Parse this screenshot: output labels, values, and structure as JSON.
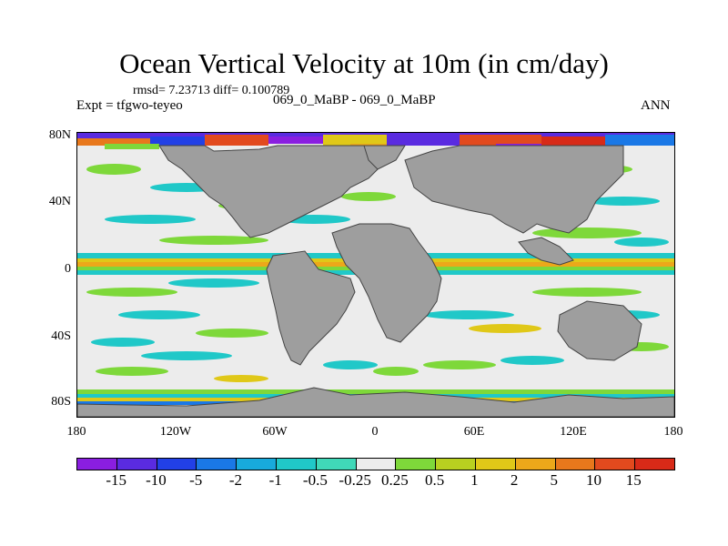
{
  "title": "Ocean Vertical Velocity at 10m (in cm/day)",
  "stats": "rmsd= 7.23713  diff= 0.100789",
  "expt": "Expt = tfgwo-teyeo",
  "cases": "069_0_MaBP - 069_0_MaBP",
  "season": "ANN",
  "lat_labels": [
    "80N",
    "40N",
    "0",
    "40S",
    "80S"
  ],
  "lon_labels": [
    "180",
    "120W",
    "60W",
    "0",
    "60E",
    "120E",
    "180"
  ],
  "colorbar": {
    "labels": [
      "-15",
      "-10",
      "-5",
      "-2",
      "-1",
      "-0.5",
      "-0.25",
      "0.25",
      "0.5",
      "1",
      "2",
      "5",
      "10",
      "15"
    ],
    "colors": [
      "#8a1ee0",
      "#5a2be0",
      "#2240e6",
      "#1a78e6",
      "#18aadc",
      "#20c8c8",
      "#40d8b8",
      "#ececec",
      "#7ed83a",
      "#b8d020",
      "#e0c818",
      "#eca81a",
      "#e8781c",
      "#e24a1e",
      "#d82a18"
    ]
  },
  "map": {
    "land_color": "#9e9e9e",
    "background_color": "#ececec"
  }
}
